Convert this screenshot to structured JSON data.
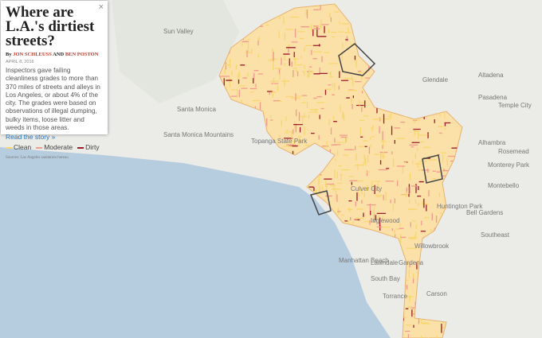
{
  "panel": {
    "close": "×",
    "title": "Where are L.A.'s dirtiest streets?",
    "byline": {
      "prefix": "By",
      "authors": [
        "JON SCHLEUSS",
        "BEN POSTON"
      ],
      "joiner": "AND"
    },
    "date": "APRIL 8, 2016",
    "description": "Inspectors gave failing cleanliness grades to more than 370 miles of streets and alleys in Los Angeles, or about 4% of the city. The grades were based on observations of illegal dumping, bulky items, loose litter and weeds in those areas.",
    "link": "Read the story »",
    "legend": [
      {
        "label": "Clean",
        "color": "#f5d76e"
      },
      {
        "label": "Moderate",
        "color": "#f29a8e"
      },
      {
        "label": "Dirty",
        "color": "#9e1b2b"
      }
    ],
    "sources": "Sources: Los Angeles sanitation bureau"
  },
  "map": {
    "places": [
      "Sun Valley",
      "Altadena",
      "Pasadena",
      "Glendale",
      "Santa Monica Mountains",
      "Topanga State Park",
      "Temple City",
      "Alhambra",
      "Rosemead",
      "Monterey Park",
      "Montebello",
      "Huntington Park",
      "Bell Gardens",
      "Southeast",
      "Inglewood",
      "Culver City",
      "Willowbrook",
      "Manhattan Beach",
      "Lawndale",
      "Gardena",
      "South Bay",
      "Torrance",
      "Carson",
      "Santa Monica"
    ]
  }
}
